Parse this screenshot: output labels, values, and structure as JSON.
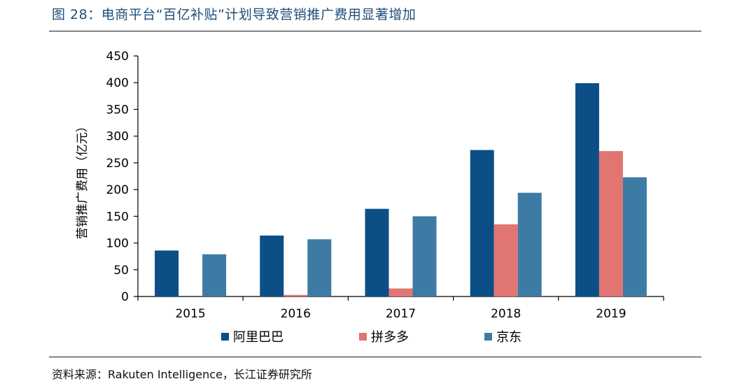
{
  "header": {
    "title": "图 28：电商平台“百亿补贴”计划导致营销推广费用显著增加"
  },
  "footer": {
    "source": "资料来源：Rakuten Intelligence，长江证券研究所"
  },
  "chart_data": {
    "type": "bar",
    "categories": [
      "2015",
      "2016",
      "2017",
      "2018",
      "2019"
    ],
    "series": [
      {
        "name": "阿里巴巴",
        "color": "#0b4f86",
        "values": [
          86,
          114,
          164,
          274,
          399
        ]
      },
      {
        "name": "拼多多",
        "color": "#e07572",
        "values": [
          null,
          3,
          15,
          135,
          272
        ]
      },
      {
        "name": "京东",
        "color": "#3d7ba5",
        "values": [
          79,
          107,
          150,
          194,
          223
        ]
      }
    ],
    "ylabel": "营销推广费用（亿元）",
    "xlabel": "",
    "ylim": [
      0,
      450
    ],
    "yticks": [
      0,
      50,
      100,
      150,
      200,
      250,
      300,
      350,
      400,
      450
    ],
    "grid": false,
    "legend_position": "bottom"
  }
}
